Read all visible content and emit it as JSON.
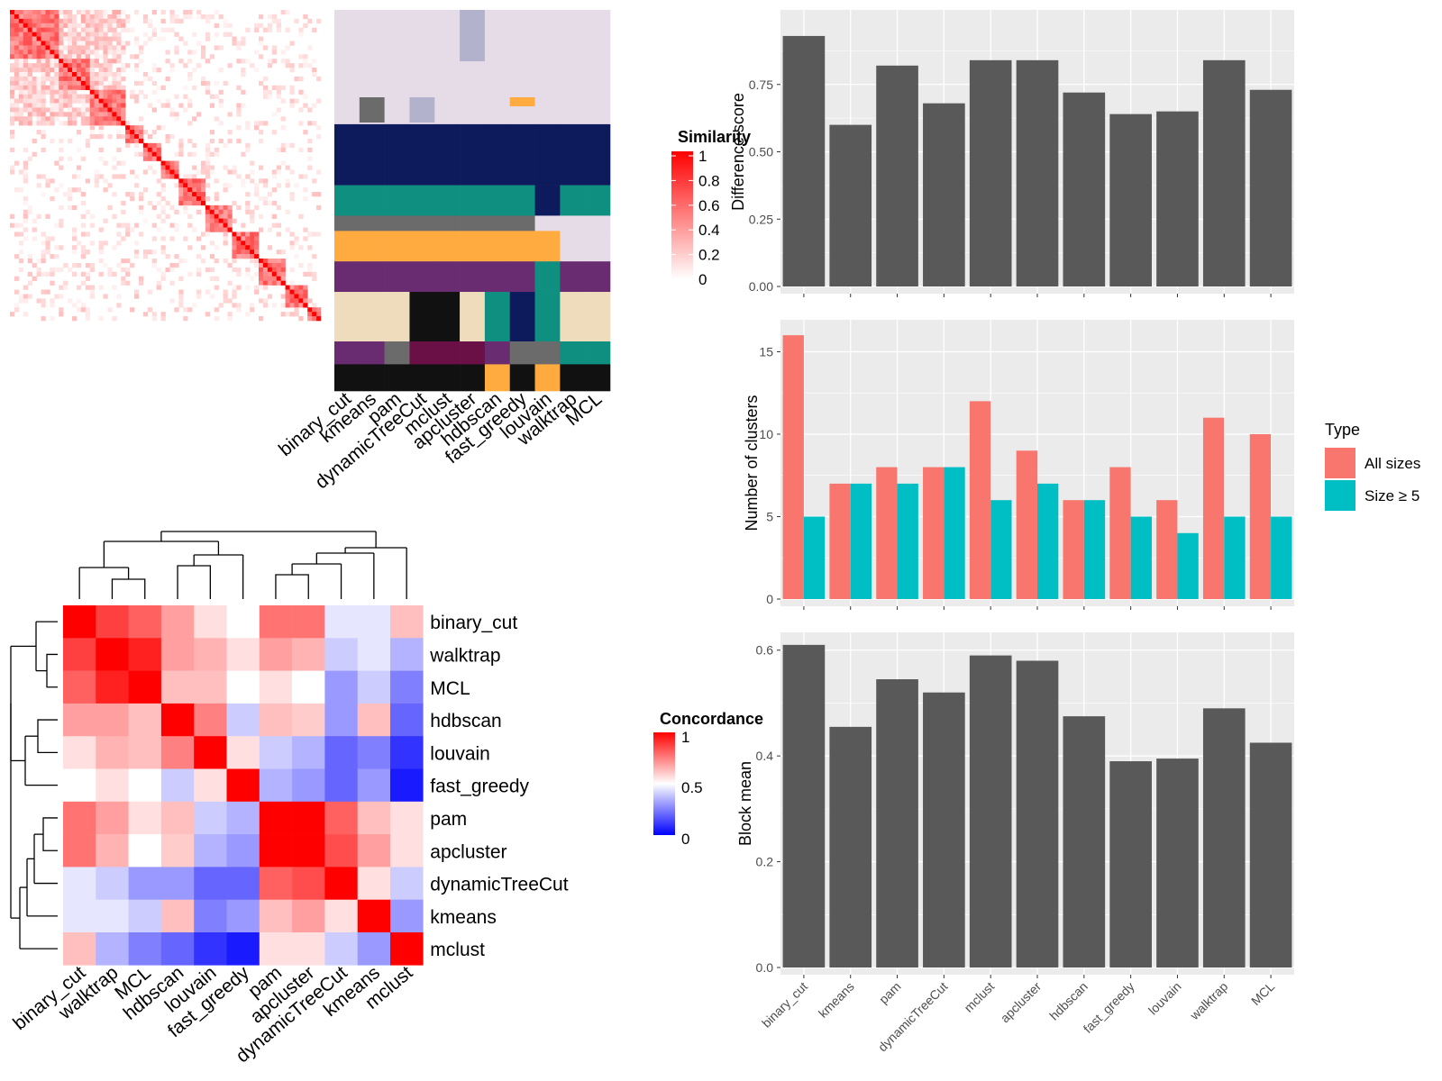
{
  "method_order": [
    "binary_cut",
    "kmeans",
    "pam",
    "dynamicTreeCut",
    "mclust",
    "apcluster",
    "hdbscan",
    "fast_greedy",
    "louvain",
    "walktrap",
    "MCL"
  ],
  "similarity_legend": {
    "title": "Similarity",
    "ticks": [
      "1",
      "0.8",
      "0.6",
      "0.4",
      "0.2",
      "0"
    ],
    "colors": {
      "high": "#ff0000",
      "low": "#ffffff"
    }
  },
  "concordance_legend": {
    "title": "Concordance",
    "ticks": [
      "1",
      "0.5",
      "0"
    ],
    "colors": {
      "high": "#ff0000",
      "mid": "#ffffff",
      "low": "#0000ff"
    }
  },
  "concordance_order": [
    "binary_cut",
    "walktrap",
    "MCL",
    "hdbscan",
    "louvain",
    "fast_greedy",
    "pam",
    "apcluster",
    "dynamicTreeCut",
    "kmeans",
    "mclust"
  ],
  "concordance_matrix": [
    [
      1.0,
      0.8,
      0.75,
      0.65,
      0.55,
      0.5,
      0.72,
      0.72,
      0.45,
      0.45,
      0.6
    ],
    [
      0.8,
      1.0,
      0.85,
      0.65,
      0.62,
      0.55,
      0.65,
      0.62,
      0.4,
      0.45,
      0.35
    ],
    [
      0.75,
      0.85,
      1.0,
      0.6,
      0.6,
      0.5,
      0.55,
      0.5,
      0.3,
      0.4,
      0.25
    ],
    [
      0.65,
      0.65,
      0.6,
      1.0,
      0.7,
      0.4,
      0.6,
      0.58,
      0.3,
      0.6,
      0.2
    ],
    [
      0.55,
      0.62,
      0.6,
      0.7,
      1.0,
      0.55,
      0.4,
      0.35,
      0.2,
      0.25,
      0.1
    ],
    [
      0.5,
      0.55,
      0.5,
      0.4,
      0.55,
      1.0,
      0.35,
      0.3,
      0.2,
      0.3,
      0.05
    ],
    [
      0.72,
      0.65,
      0.55,
      0.6,
      0.4,
      0.35,
      1.0,
      0.9,
      0.75,
      0.6,
      0.55
    ],
    [
      0.72,
      0.62,
      0.5,
      0.58,
      0.35,
      0.3,
      0.9,
      1.0,
      0.78,
      0.65,
      0.55
    ],
    [
      0.45,
      0.4,
      0.3,
      0.3,
      0.2,
      0.2,
      0.75,
      0.78,
      1.0,
      0.55,
      0.4
    ],
    [
      0.45,
      0.45,
      0.4,
      0.6,
      0.25,
      0.3,
      0.6,
      0.65,
      0.55,
      1.0,
      0.3
    ],
    [
      0.6,
      0.35,
      0.25,
      0.2,
      0.1,
      0.05,
      0.55,
      0.55,
      0.4,
      0.3,
      1.0
    ]
  ],
  "chart_data": [
    {
      "type": "bar",
      "title": "",
      "xlabel": "",
      "ylabel": "Difference score",
      "categories": [
        "binary_cut",
        "kmeans",
        "pam",
        "dynamicTreeCut",
        "mclust",
        "apcluster",
        "hdbscan",
        "fast_greedy",
        "louvain",
        "walktrap",
        "MCL"
      ],
      "values": [
        0.93,
        0.6,
        0.82,
        0.68,
        0.84,
        0.84,
        0.72,
        0.64,
        0.65,
        0.84,
        0.73
      ],
      "ylim": [
        0,
        1.0
      ],
      "yticks": [
        "0.00",
        "0.25",
        "0.50",
        "0.75"
      ],
      "grid": true
    },
    {
      "type": "bar",
      "title": "",
      "xlabel": "",
      "ylabel": "Number of clusters",
      "categories": [
        "binary_cut",
        "kmeans",
        "pam",
        "dynamicTreeCut",
        "mclust",
        "apcluster",
        "hdbscan",
        "fast_greedy",
        "louvain",
        "walktrap",
        "MCL"
      ],
      "series": [
        {
          "name": "All sizes",
          "values": [
            16,
            7,
            8,
            8,
            12,
            9,
            6,
            8,
            6,
            11,
            10
          ],
          "color": "#f8766d"
        },
        {
          "name": "Size ≥ 5",
          "values": [
            5,
            7,
            7,
            8,
            6,
            7,
            6,
            5,
            4,
            5,
            5
          ],
          "color": "#00bfc4"
        }
      ],
      "legend_title": "Type",
      "legend_position": "right",
      "ylim": [
        0,
        16.5
      ],
      "yticks": [
        "0",
        "5",
        "10",
        "15"
      ],
      "grid": true
    },
    {
      "type": "bar",
      "title": "",
      "xlabel": "",
      "ylabel": "Block mean",
      "categories": [
        "binary_cut",
        "kmeans",
        "pam",
        "dynamicTreeCut",
        "mclust",
        "apcluster",
        "hdbscan",
        "fast_greedy",
        "louvain",
        "walktrap",
        "MCL"
      ],
      "values": [
        0.61,
        0.455,
        0.545,
        0.52,
        0.59,
        0.58,
        0.475,
        0.39,
        0.395,
        0.49,
        0.425
      ],
      "ylim": [
        0,
        0.62
      ],
      "yticks": [
        "0.0",
        "0.2",
        "0.4",
        "0.6"
      ],
      "grid": true
    }
  ],
  "colors": {
    "bar_gray": "#595959",
    "panel_bg": "#ebebeb",
    "grid": "#ffffff",
    "cluster_palette": [
      "#e6dce8",
      "#0d1b5c",
      "#0f8f80",
      "#6b6b6b",
      "#ffab40",
      "#6a2c70",
      "#efdcbc",
      "#111111",
      "#6b0f47",
      "#b2b2cc"
    ]
  }
}
